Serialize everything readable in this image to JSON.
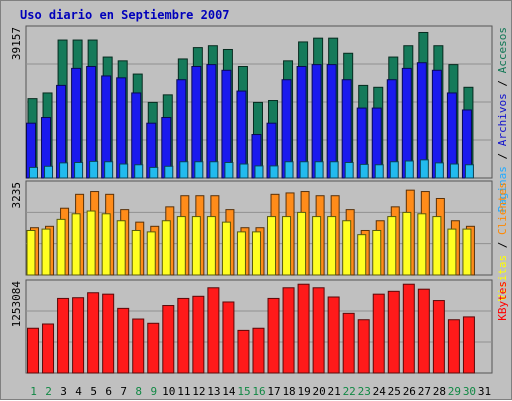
{
  "chart_data": {
    "type": "bar",
    "title": "Uso diario en Septiembre 2007",
    "days": [
      "1",
      "2",
      "3",
      "4",
      "5",
      "6",
      "7",
      "8",
      "9",
      "10",
      "11",
      "12",
      "13",
      "14",
      "15",
      "16",
      "17",
      "18",
      "19",
      "20",
      "21",
      "22",
      "23",
      "24",
      "25",
      "26",
      "27",
      "28",
      "29",
      "30",
      "31"
    ],
    "weekend_days": [
      "1",
      "2",
      "8",
      "9",
      "15",
      "16",
      "22",
      "23",
      "29",
      "30"
    ],
    "has_data": [
      true,
      true,
      true,
      true,
      true,
      true,
      true,
      true,
      true,
      true,
      true,
      true,
      true,
      true,
      true,
      true,
      true,
      true,
      true,
      true,
      true,
      true,
      true,
      true,
      true,
      true,
      true,
      true,
      true,
      true,
      false
    ],
    "panels": [
      {
        "id": "traffic",
        "ylabel": "39157",
        "ymax": 39157,
        "legend": [
          {
            "text": "Paginas",
            "color": "#22aaff"
          },
          {
            "text": "Archivos",
            "color": "#1111cc"
          },
          {
            "text": "Accesos",
            "color": "#117755"
          }
        ],
        "series": [
          {
            "name": "Accesos",
            "color": "#157a5a",
            "values": [
              21000,
              22500,
              36500,
              36500,
              36500,
              32000,
              31000,
              27500,
              20000,
              22000,
              31500,
              34500,
              35000,
              34000,
              29500,
              20000,
              20500,
              31000,
              36000,
              37000,
              37000,
              33000,
              24500,
              24000,
              32000,
              35000,
              38500,
              35000,
              30000,
              24000,
              0
            ]
          },
          {
            "name": "Archivos",
            "color": "#1a1aee",
            "values": [
              14500,
              16000,
              24500,
              29000,
              29500,
              27000,
              26500,
              22500,
              14500,
              16000,
              26000,
              29500,
              30000,
              28500,
              23000,
              11500,
              14500,
              26000,
              29500,
              30000,
              30000,
              26000,
              18500,
              18500,
              26000,
              29000,
              30500,
              28500,
              22500,
              18000,
              0
            ]
          },
          {
            "name": "Paginas",
            "color": "#22bbee",
            "values": [
              2800,
              3100,
              4000,
              4100,
              4400,
              4300,
              3700,
              3500,
              2800,
              3100,
              4300,
              4300,
              4300,
              4100,
              3700,
              3200,
              3200,
              4300,
              4300,
              4300,
              4300,
              4100,
              3600,
              3500,
              4300,
              4500,
              4800,
              4000,
              3700,
              3500,
              0
            ]
          }
        ]
      },
      {
        "id": "visitors",
        "ylabel": "3235",
        "ymax": 3235,
        "legend": [
          {
            "text": "Visitas",
            "color": "#ffff00"
          },
          {
            "text": "Clientes",
            "color": "#ff8800"
          }
        ],
        "series": [
          {
            "name": "Clientes",
            "color": "#ff8c1a",
            "values": [
              1700,
              1750,
              2400,
              2900,
              3000,
              2900,
              2350,
              1900,
              1750,
              2450,
              2850,
              2850,
              2850,
              2350,
              1700,
              1700,
              2900,
              2950,
              3000,
              2850,
              2850,
              2350,
              1600,
              1950,
              2450,
              3050,
              3000,
              2750,
              1950,
              1750,
              0
            ]
          },
          {
            "name": "Visitas",
            "color": "#ffff22",
            "values": [
              1600,
              1650,
              2000,
              2200,
              2300,
              2200,
              1950,
              1600,
              1550,
              1950,
              2100,
              2100,
              2100,
              1900,
              1550,
              1550,
              2100,
              2100,
              2250,
              2100,
              2100,
              1950,
              1450,
              1600,
              2100,
              2250,
              2200,
              2100,
              1650,
              1650,
              0
            ]
          }
        ]
      },
      {
        "id": "kbytes",
        "ylabel": "1253084",
        "ymax": 1253084,
        "legend": [
          {
            "text": "KBytes",
            "color": "#ff0000"
          }
        ],
        "series": [
          {
            "name": "KBytes",
            "color": "#ff1a1a",
            "values": [
              630000,
              690000,
              1050000,
              1060000,
              1130000,
              1110000,
              910000,
              760000,
              700000,
              950000,
              1050000,
              1080000,
              1200000,
              1000000,
              600000,
              630000,
              1050000,
              1200000,
              1250000,
              1200000,
              1070000,
              840000,
              750000,
              1110000,
              1150000,
              1250000,
              1180000,
              1020000,
              750000,
              790000,
              0
            ]
          }
        ]
      }
    ]
  },
  "legend_separator": "/"
}
